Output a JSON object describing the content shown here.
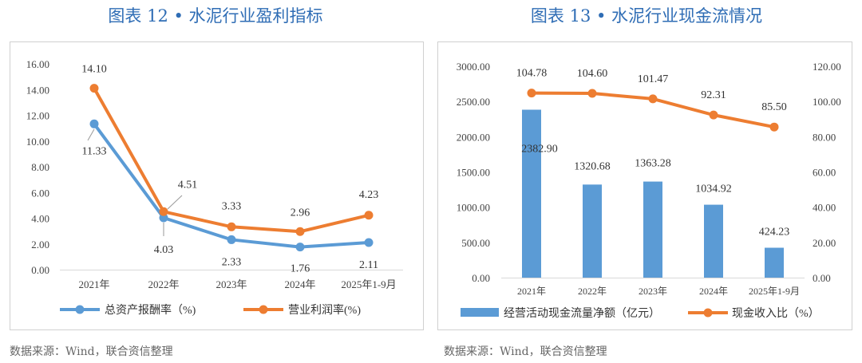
{
  "chart_data": [
    {
      "type": "line",
      "title": "图表 12 • 水泥行业盈利指标",
      "categories": [
        "2021年",
        "2022年",
        "2023年",
        "2024年",
        "2025年1-9月"
      ],
      "ylim": [
        0,
        16
      ],
      "yticks": [
        "0.00",
        "2.00",
        "4.00",
        "6.00",
        "8.00",
        "10.00",
        "12.00",
        "14.00",
        "16.00"
      ],
      "series": [
        {
          "name": "总资产报酬率（%)",
          "color": "#5b9bd5",
          "values": [
            11.33,
            4.03,
            2.33,
            1.76,
            2.11
          ],
          "labels": [
            "11.33",
            "4.03",
            "2.33",
            "1.76",
            "2.11"
          ]
        },
        {
          "name": "营业利润率(%)",
          "color": "#ed7d31",
          "values": [
            14.1,
            4.51,
            3.33,
            2.96,
            4.23
          ],
          "labels": [
            "14.10",
            "4.51",
            "3.33",
            "2.96",
            "4.23"
          ]
        }
      ],
      "legend": "bottom",
      "source": "数据来源：Wind，联合资信整理"
    },
    {
      "type": "bar+line",
      "title": "图表 13 • 水泥行业现金流情况",
      "categories": [
        "2021年",
        "2022年",
        "2023年",
        "2024年",
        "2025年1-9月"
      ],
      "ylim_left": [
        0,
        3000
      ],
      "ylim_right": [
        0,
        120
      ],
      "yticks_left": [
        "0.00",
        "500.00",
        "1000.00",
        "1500.00",
        "2000.00",
        "2500.00",
        "3000.00"
      ],
      "yticks_right": [
        "0.00",
        "20.00",
        "40.00",
        "60.00",
        "80.00",
        "100.00",
        "120.00"
      ],
      "series": [
        {
          "name": "经营活动现金流量净额（亿元）",
          "type": "bar",
          "axis": "left",
          "color": "#5b9bd5",
          "values": [
            2382.9,
            1320.68,
            1363.28,
            1034.92,
            424.23
          ],
          "labels": [
            "2382.90",
            "1320.68",
            "1363.28",
            "1034.92",
            "424.23"
          ]
        },
        {
          "name": "现金收入比（%）",
          "type": "line",
          "axis": "right",
          "color": "#ed7d31",
          "values": [
            104.78,
            104.6,
            101.47,
            92.31,
            85.5
          ],
          "labels": [
            "104.78",
            "104.60",
            "101.47",
            "92.31",
            "85.50"
          ]
        }
      ],
      "legend": "bottom",
      "source": "数据来源：Wind，联合资信整理"
    }
  ]
}
